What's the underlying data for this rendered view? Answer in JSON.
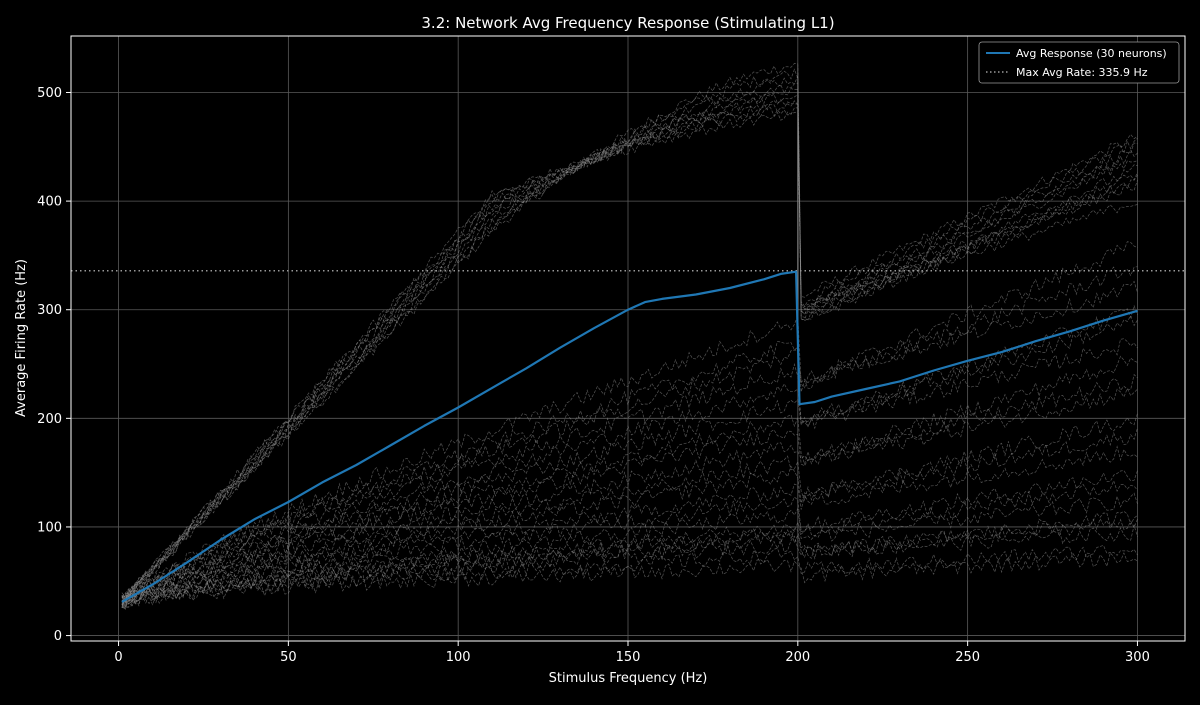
{
  "chart_data": {
    "type": "line",
    "title": "3.2: Network Avg Frequency Response (Stimulating L1)",
    "xlabel": "Stimulus Frequency (Hz)",
    "ylabel": "Average Firing Rate (Hz)",
    "xlim": [
      -14,
      314
    ],
    "ylim": [
      -5,
      552
    ],
    "xticks": [
      0,
      50,
      100,
      150,
      200,
      250,
      300
    ],
    "yticks": [
      0,
      100,
      200,
      300,
      400,
      500
    ],
    "grid": true,
    "legend_position": "top-right",
    "colors": {
      "background": "#000000",
      "average": "#1f77b4",
      "individual": "#8c8c8c",
      "max_line": "#9a9a9a",
      "grid": "#5a5a5a",
      "text": "#ffffff"
    },
    "series": [
      {
        "name": "Avg Response (30 neurons)",
        "style": "solid",
        "x": [
          1,
          10,
          20,
          30,
          40,
          50,
          60,
          70,
          80,
          90,
          100,
          110,
          120,
          130,
          140,
          150,
          155,
          160,
          170,
          180,
          190,
          195,
          199.5,
          200.5,
          205,
          210,
          220,
          230,
          240,
          250,
          260,
          270,
          280,
          290,
          300
        ],
        "y": [
          31,
          47,
          67,
          88,
          107,
          123,
          141,
          157,
          175,
          193,
          210,
          228,
          246,
          265,
          283,
          300,
          307,
          310,
          314,
          320,
          328,
          333,
          335,
          213,
          215,
          220,
          227,
          234,
          244,
          253,
          261,
          271,
          280,
          290,
          299
        ]
      },
      {
        "name": "Max Avg Rate: 335.9 Hz",
        "style": "dotted",
        "y": 335.9
      }
    ],
    "individual_neurons": {
      "count": 30,
      "style": "thin-dashed",
      "fast_group": {
        "count": 10,
        "low_freq_slope": 3.3,
        "peak_at_200": [
          525,
          518,
          512,
          505,
          500,
          496,
          492,
          488,
          484,
          478
        ],
        "reset_at_200": [
          310,
          305,
          300,
          297,
          295,
          292,
          290,
          288,
          300,
          302
        ],
        "end_at_300": [
          460,
          455,
          450,
          445,
          440,
          430,
          425,
          420,
          415,
          400
        ]
      },
      "slow_group": {
        "count": 20,
        "end_at_200": [
          290,
          270,
          260,
          245,
          230,
          215,
          200,
          190,
          175,
          160,
          150,
          135,
          125,
          112,
          100,
          95,
          90,
          85,
          75,
          65
        ],
        "end_at_300": [
          360,
          340,
          320,
          300,
          290,
          270,
          255,
          235,
          225,
          200,
          185,
          170,
          150,
          140,
          125,
          110,
          105,
          95,
          80,
          72
        ]
      }
    }
  }
}
